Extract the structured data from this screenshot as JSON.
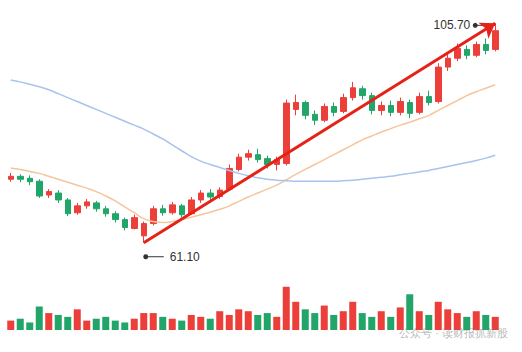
{
  "chart_data": {
    "type": "candlestick",
    "categories": [
      null,
      null,
      null,
      null,
      null,
      null,
      null,
      null,
      null,
      null,
      null,
      null,
      null,
      null,
      null,
      null,
      null,
      null,
      null,
      null,
      null,
      null,
      null,
      null,
      null,
      null,
      null,
      null,
      null,
      null,
      null,
      null,
      null,
      null,
      null,
      null,
      null,
      null,
      null,
      null,
      null,
      null,
      null,
      null,
      null,
      null,
      null,
      null,
      null,
      null,
      null,
      null
    ],
    "ylim": [
      58,
      108
    ],
    "yticks": [
      58,
      108
    ],
    "y2lim": [
      0,
      50
    ],
    "y2ticks": [
      0,
      50
    ],
    "grid": false,
    "tick_labels": false,
    "series": [
      {
        "type": "candlestick",
        "color": {
          "up": "#ec3f3a",
          "down": "#22a568"
        },
        "values": [
          [
            74.0,
            74.6,
            73.5,
            75.3
          ],
          [
            74.6,
            74.0,
            73.4,
            75.0
          ],
          [
            74.2,
            73.5,
            72.8,
            74.8
          ],
          [
            73.6,
            70.6,
            70.2,
            74.0
          ],
          [
            70.8,
            71.5,
            70.2,
            72.0
          ],
          [
            71.2,
            69.8,
            69.2,
            71.8
          ],
          [
            69.8,
            67.0,
            66.5,
            70.2
          ],
          [
            67.2,
            68.6,
            66.8,
            69.2
          ],
          [
            68.6,
            69.4,
            68.0,
            70.0
          ],
          [
            69.2,
            68.0,
            67.4,
            69.6
          ],
          [
            68.0,
            67.0,
            66.4,
            68.6
          ],
          [
            67.0,
            65.8,
            65.2,
            67.5
          ],
          [
            65.8,
            64.2,
            63.6,
            66.2
          ],
          [
            64.0,
            66.2,
            63.8,
            66.8
          ],
          [
            62.5,
            65.0,
            61.1,
            65.4
          ],
          [
            65.0,
            68.0,
            64.6,
            68.6
          ],
          [
            68.0,
            67.2,
            66.6,
            68.8
          ],
          [
            67.2,
            68.8,
            66.8,
            69.4
          ],
          [
            68.6,
            66.8,
            66.2,
            69.0
          ],
          [
            67.0,
            69.8,
            66.8,
            70.4
          ],
          [
            69.8,
            71.2,
            69.2,
            71.8
          ],
          [
            71.2,
            70.4,
            69.8,
            72.0
          ],
          [
            70.5,
            71.8,
            70.0,
            72.4
          ],
          [
            72.0,
            76.2,
            71.6,
            77.0
          ],
          [
            76.0,
            78.5,
            75.6,
            79.2
          ],
          [
            78.5,
            79.2,
            77.8,
            80.0
          ],
          [
            79.0,
            78.0,
            77.4,
            80.2
          ],
          [
            78.2,
            77.0,
            76.2,
            78.8
          ],
          [
            77.0,
            78.0,
            75.8,
            78.6
          ],
          [
            77.2,
            89.5,
            76.8,
            90.2
          ],
          [
            88.2,
            89.6,
            87.0,
            91.2
          ],
          [
            89.6,
            87.0,
            86.2,
            90.0
          ],
          [
            87.2,
            86.0,
            85.0,
            88.0
          ],
          [
            86.0,
            88.8,
            85.6,
            89.4
          ],
          [
            88.8,
            87.6,
            86.8,
            89.6
          ],
          [
            87.8,
            90.6,
            87.4,
            91.4
          ],
          [
            90.6,
            92.6,
            90.0,
            93.8
          ],
          [
            92.4,
            91.0,
            90.2,
            93.0
          ],
          [
            91.0,
            88.0,
            87.2,
            91.6
          ],
          [
            88.0,
            89.0,
            87.0,
            89.8
          ],
          [
            89.0,
            87.6,
            86.8,
            90.0
          ],
          [
            87.6,
            89.8,
            87.0,
            90.6
          ],
          [
            89.6,
            87.4,
            86.4,
            90.2
          ],
          [
            87.6,
            90.8,
            87.2,
            91.6
          ],
          [
            90.8,
            89.6,
            89.0,
            92.0
          ],
          [
            89.8,
            96.8,
            89.4,
            97.6
          ],
          [
            96.8,
            98.6,
            96.0,
            99.4
          ],
          [
            98.6,
            100.6,
            98.0,
            101.6
          ],
          [
            100.4,
            99.2,
            98.4,
            101.2
          ],
          [
            99.2,
            101.4,
            98.8,
            102.0
          ],
          [
            101.4,
            100.2,
            99.4,
            102.6
          ],
          [
            100.4,
            104.2,
            100.0,
            105.7
          ]
        ]
      },
      {
        "type": "line",
        "color": "#f6c59b",
        "values": [
          76.3,
          76.0,
          75.6,
          75.2,
          74.6,
          74.0,
          73.4,
          72.8,
          72.2,
          71.5,
          70.6,
          69.6,
          68.4,
          67.2,
          66.0,
          65.4,
          65.2,
          65.4,
          65.8,
          66.3,
          66.8,
          67.3,
          67.9,
          68.6,
          69.5,
          70.4,
          71.2,
          72.0,
          72.8,
          73.9,
          75.0,
          76.0,
          77.0,
          78.0,
          79.0,
          80.0,
          81.0,
          82.0,
          82.8,
          83.6,
          84.3,
          85.0,
          85.6,
          86.3,
          87.0,
          88.0,
          89.0,
          90.0,
          91.0,
          91.8,
          92.5,
          93.2
        ]
      },
      {
        "type": "line",
        "color": "#a9c3ec",
        "values": [
          94.2,
          93.8,
          93.3,
          92.8,
          92.2,
          91.4,
          90.6,
          89.8,
          89.0,
          88.2,
          87.4,
          86.6,
          85.8,
          85.0,
          84.2,
          83.2,
          82.2,
          81.0,
          79.8,
          78.6,
          77.7,
          77.0,
          76.4,
          75.8,
          75.2,
          74.7,
          74.3,
          74.0,
          73.8,
          73.7,
          73.6,
          73.6,
          73.6,
          73.6,
          73.6,
          73.7,
          73.8,
          74.0,
          74.2,
          74.4,
          74.6,
          74.9,
          75.2,
          75.5,
          75.8,
          76.2,
          76.6,
          77.0,
          77.4,
          77.8,
          78.3,
          78.9
        ]
      },
      {
        "type": "bar",
        "axis": "y2",
        "values": [
          10,
          12,
          8,
          25,
          18,
          16,
          14,
          22,
          10,
          12,
          14,
          10,
          8,
          12,
          18,
          18,
          14,
          12,
          10,
          16,
          14,
          12,
          20,
          16,
          22,
          20,
          16,
          18,
          14,
          46,
          30,
          22,
          18,
          26,
          16,
          20,
          30,
          18,
          14,
          20,
          14,
          24,
          38,
          20,
          16,
          30,
          22,
          18,
          14,
          20,
          16,
          14
        ]
      }
    ],
    "annotations": [
      {
        "text": "105.70",
        "x": 51,
        "y": 105.7
      },
      {
        "text": "61.10",
        "x": 14,
        "y": 61.1
      }
    ],
    "arrow": {
      "from": [
        14,
        61.1
      ],
      "to": [
        51,
        105.7
      ],
      "color": "#e62117"
    },
    "watermark": "公众号 · 读财报抓新股"
  }
}
